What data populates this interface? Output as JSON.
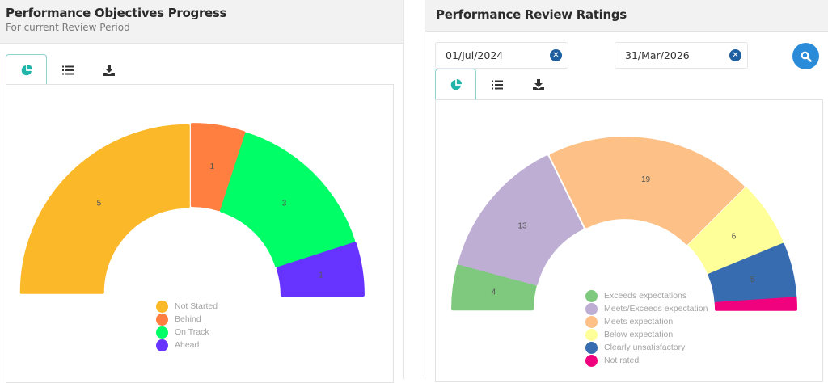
{
  "left_panel": {
    "title": "Performance Objectives Progress",
    "subtitle": "For current Review Period",
    "tabs": [
      {
        "icon": "pie-chart-icon",
        "active": true
      },
      {
        "icon": "list-icon",
        "active": false
      },
      {
        "icon": "download-icon",
        "active": false
      }
    ]
  },
  "right_panel": {
    "title": "Performance Review Ratings",
    "date_from": {
      "value": "01/Jul/2024",
      "clear_icon": "clear-icon"
    },
    "date_to": {
      "value": "31/Mar/2026",
      "clear_icon": "clear-icon"
    },
    "search_button": {
      "icon": "search-icon"
    },
    "tabs": [
      {
        "icon": "pie-chart-icon",
        "active": true
      },
      {
        "icon": "list-icon",
        "active": false
      },
      {
        "icon": "download-icon",
        "active": false
      }
    ]
  },
  "colors": {
    "tab_active": "#1fb5a8",
    "search_button": "#2a8bd8",
    "clear_button": "#1f5fa0"
  },
  "chart_data": [
    {
      "type": "pie",
      "subtype": "half-donut",
      "title": "Performance Objectives Progress",
      "categories": [
        "Not Started",
        "Behind",
        "On Track",
        "Ahead"
      ],
      "values": [
        5,
        1,
        3,
        1
      ],
      "colors": [
        "#fbb829",
        "#ff7f41",
        "#00ff66",
        "#6633ff"
      ],
      "legend_position": "bottom-center"
    },
    {
      "type": "pie",
      "subtype": "half-donut",
      "title": "Performance Review Ratings",
      "categories": [
        "Exceeds expectations",
        "Meets/Exceeds expectation",
        "Meets expectation",
        "Below expectation",
        "Clearly unsatisfactory",
        "Not rated"
      ],
      "values": [
        4,
        13,
        19,
        6,
        5,
        1
      ],
      "colors": [
        "#7fc97f",
        "#beaed4",
        "#fdc086",
        "#ffff99",
        "#386cb0",
        "#f0027f"
      ],
      "legend_position": "bottom-center"
    }
  ]
}
